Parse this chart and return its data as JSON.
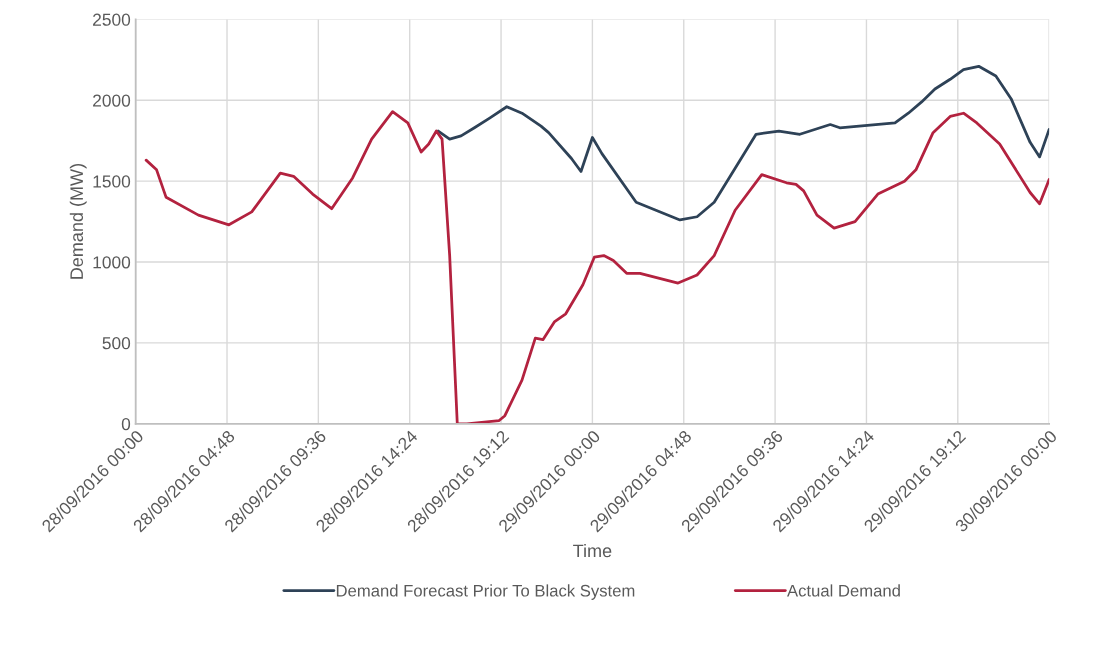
{
  "chart_data": {
    "type": "line",
    "xlabel": "Time",
    "ylabel": "Demand (MW)",
    "xlim": [
      "2016-09-28T00:00",
      "2016-09-30T00:00"
    ],
    "ylim": [
      0,
      2500
    ],
    "yticks": [
      0,
      500,
      1000,
      1500,
      2000,
      2500
    ],
    "xticks": [
      {
        "value": "2016-09-28T00:00",
        "label": "28/09/2016 00:00"
      },
      {
        "value": "2016-09-28T04:48",
        "label": "28/09/2016 04:48"
      },
      {
        "value": "2016-09-28T09:36",
        "label": "28/09/2016 09:36"
      },
      {
        "value": "2016-09-28T14:24",
        "label": "28/09/2016 14:24"
      },
      {
        "value": "2016-09-28T19:12",
        "label": "28/09/2016 19:12"
      },
      {
        "value": "2016-09-29T00:00",
        "label": "29/09/2016 00:00"
      },
      {
        "value": "2016-09-29T04:48",
        "label": "29/09/2016 04:48"
      },
      {
        "value": "2016-09-29T09:36",
        "label": "29/09/2016 09:36"
      },
      {
        "value": "2016-09-29T14:24",
        "label": "29/09/2016 14:24"
      },
      {
        "value": "2016-09-29T19:12",
        "label": "29/09/2016 19:12"
      },
      {
        "value": "2016-09-30T00:00",
        "label": "30/09/2016 00:00"
      }
    ],
    "grid": true,
    "legend": "bottom",
    "marker": "none",
    "line_style": "solid",
    "series": [
      {
        "name": "Demand Forecast Prior To Black System",
        "color": "#2e4257",
        "x": [
          "2016-09-28T15:54",
          "2016-09-28T16:30",
          "2016-09-28T17:06",
          "2016-09-28T17:48",
          "2016-09-28T18:36",
          "2016-09-28T19:30",
          "2016-09-28T20:18",
          "2016-09-28T21:18",
          "2016-09-28T21:42",
          "2016-09-28T22:54",
          "2016-09-28T23:24",
          "2016-09-29T00:00",
          "2016-09-29T00:30",
          "2016-09-29T02:18",
          "2016-09-29T04:36",
          "2016-09-29T05:30",
          "2016-09-29T06:24",
          "2016-09-29T08:36",
          "2016-09-29T09:48",
          "2016-09-29T10:54",
          "2016-09-29T12:30",
          "2016-09-29T13:00",
          "2016-09-29T15:54",
          "2016-09-29T16:36",
          "2016-09-29T17:18",
          "2016-09-29T18:00",
          "2016-09-29T18:48",
          "2016-09-29T19:30",
          "2016-09-29T20:18",
          "2016-09-29T21:12",
          "2016-09-29T22:00",
          "2016-09-29T23:00",
          "2016-09-29T23:30",
          "2016-09-30T00:00"
        ],
        "values": [
          1810,
          1760,
          1780,
          1830,
          1890,
          1960,
          1920,
          1840,
          1800,
          1640,
          1560,
          1770,
          1670,
          1370,
          1260,
          1280,
          1370,
          1790,
          1810,
          1790,
          1850,
          1830,
          1860,
          1920,
          1990,
          2070,
          2130,
          2190,
          2210,
          2150,
          2010,
          1740,
          1650,
          1820
        ]
      },
      {
        "name": "Actual Demand",
        "color": "#b3223f",
        "x": [
          "2016-09-28T00:33",
          "2016-09-28T01:06",
          "2016-09-28T01:36",
          "2016-09-28T03:18",
          "2016-09-28T04:54",
          "2016-09-28T06:06",
          "2016-09-28T07:36",
          "2016-09-28T08:18",
          "2016-09-28T09:18",
          "2016-09-28T10:18",
          "2016-09-28T11:24",
          "2016-09-28T12:24",
          "2016-09-28T13:30",
          "2016-09-28T14:18",
          "2016-09-28T15:00",
          "2016-09-28T15:24",
          "2016-09-28T15:48",
          "2016-09-28T16:06",
          "2016-09-28T16:30",
          "2016-09-28T16:54",
          "2016-09-28T17:24",
          "2016-09-28T19:06",
          "2016-09-28T19:24",
          "2016-09-28T20:18",
          "2016-09-28T21:00",
          "2016-09-28T21:24",
          "2016-09-28T22:00",
          "2016-09-28T22:36",
          "2016-09-28T23:30",
          "2016-09-29T00:06",
          "2016-09-29T00:36",
          "2016-09-29T01:06",
          "2016-09-29T01:48",
          "2016-09-29T02:30",
          "2016-09-29T04:30",
          "2016-09-29T05:30",
          "2016-09-29T06:24",
          "2016-09-29T07:30",
          "2016-09-29T08:54",
          "2016-09-29T10:12",
          "2016-09-29T10:42",
          "2016-09-29T11:06",
          "2016-09-29T11:48",
          "2016-09-29T12:42",
          "2016-09-29T13:48",
          "2016-09-29T15:00",
          "2016-09-29T16:24",
          "2016-09-29T17:00",
          "2016-09-29T17:54",
          "2016-09-29T18:48",
          "2016-09-29T19:30",
          "2016-09-29T20:12",
          "2016-09-29T21:24",
          "2016-09-29T23:00",
          "2016-09-29T23:30",
          "2016-09-30T00:00"
        ],
        "values": [
          1630,
          1570,
          1400,
          1290,
          1230,
          1310,
          1550,
          1530,
          1420,
          1330,
          1520,
          1760,
          1930,
          1860,
          1680,
          1730,
          1810,
          1760,
          1040,
          0,
          0,
          20,
          50,
          270,
          530,
          520,
          630,
          680,
          860,
          1030,
          1040,
          1010,
          930,
          930,
          870,
          920,
          1040,
          1320,
          1540,
          1490,
          1480,
          1440,
          1290,
          1210,
          1250,
          1420,
          1500,
          1570,
          1800,
          1900,
          1920,
          1860,
          1730,
          1430,
          1360,
          1510
        ]
      }
    ]
  }
}
